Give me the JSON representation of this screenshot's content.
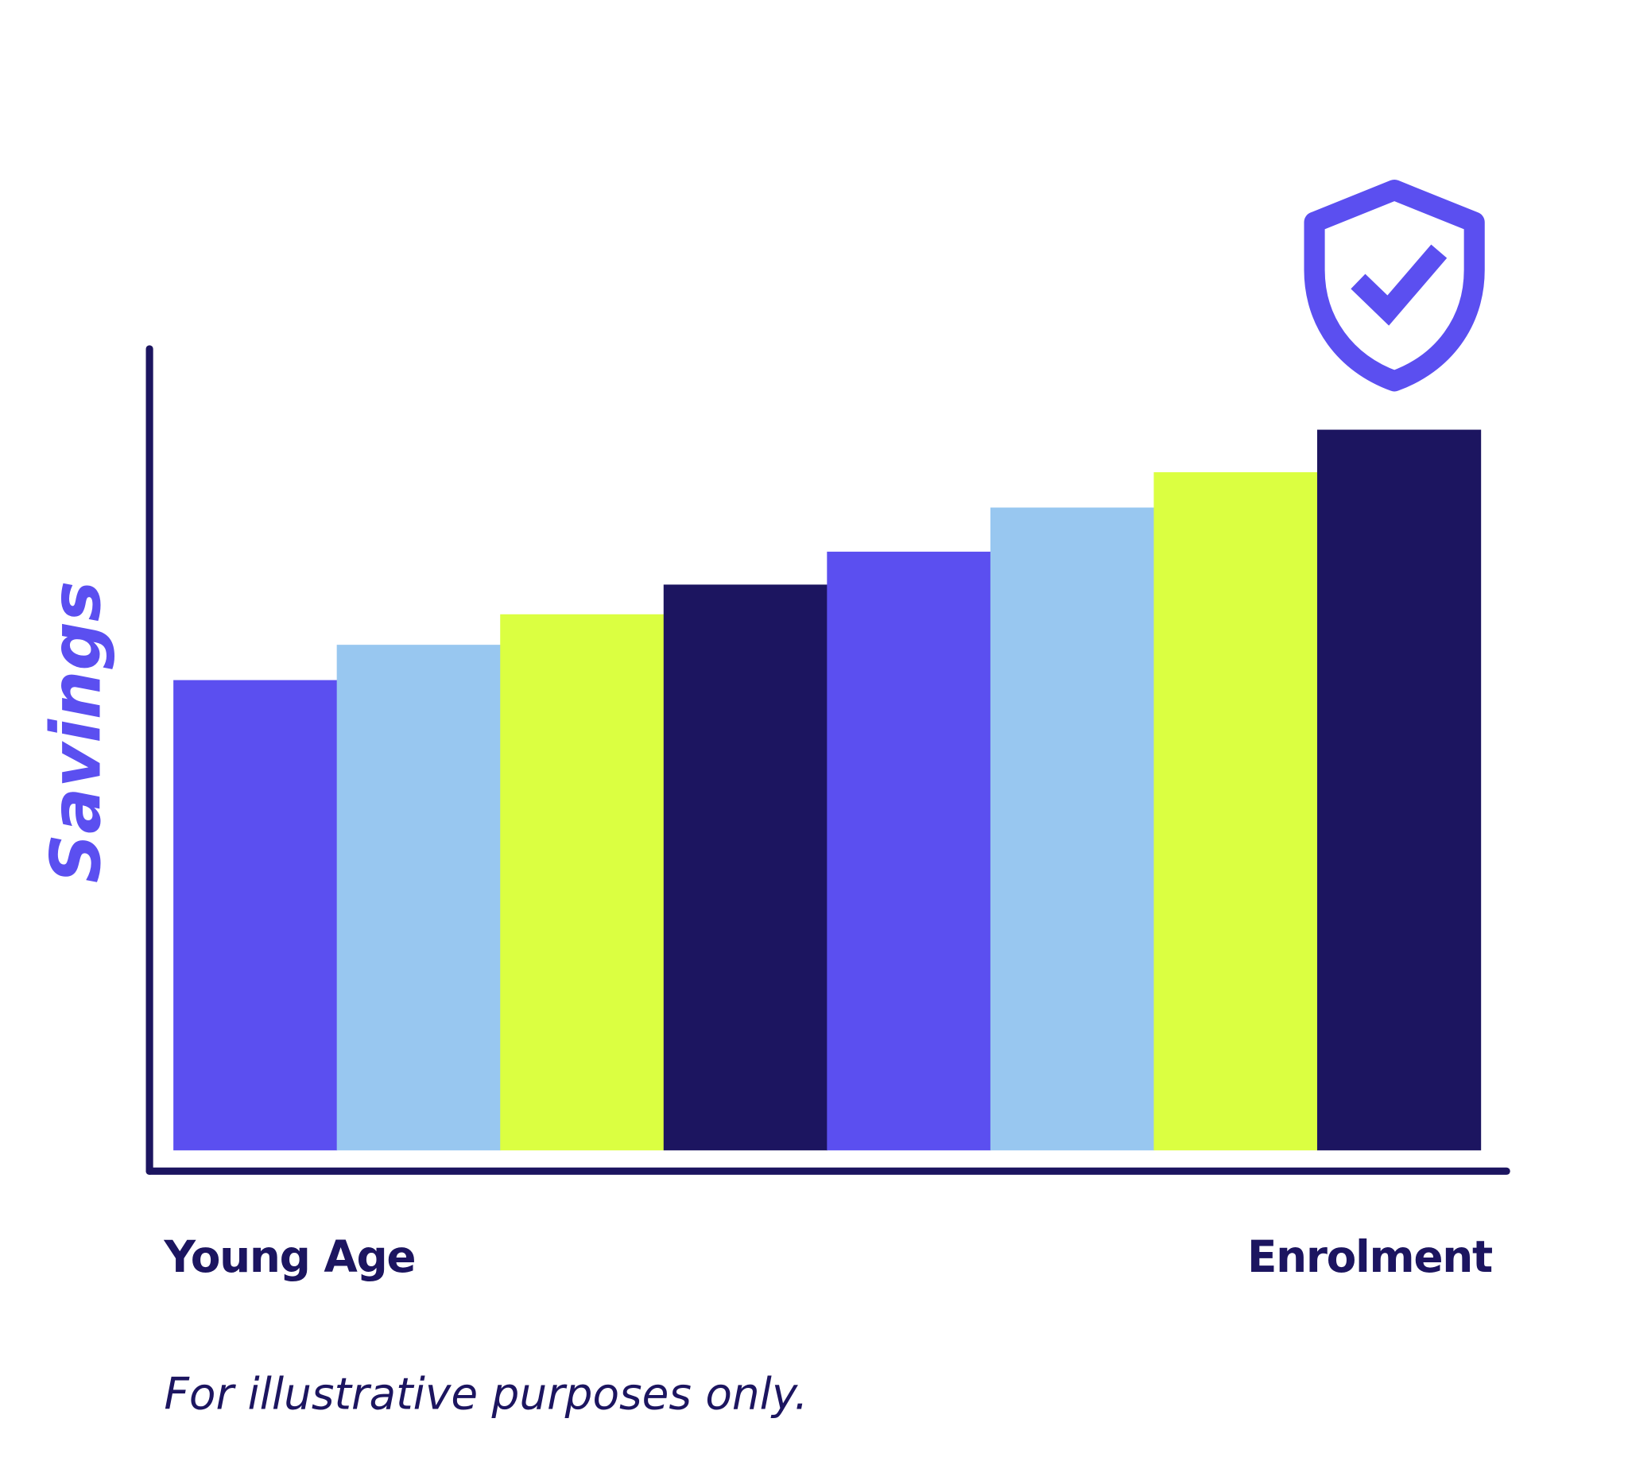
{
  "chart_data": {
    "type": "bar",
    "ylabel": "Savings",
    "xlabel_start": "Young Age",
    "xlabel_end": "Enrolment",
    "footnote": "For illustrative purposes only.",
    "values": [
      58.6,
      63.0,
      66.8,
      70.5,
      74.6,
      80.1,
      84.5,
      89.8
    ],
    "ylim": [
      0,
      100
    ],
    "grid": false,
    "ticks": false,
    "bar_colors": [
      "#5b4ff0",
      "#98c7f0",
      "#dbff41",
      "#1c1560",
      "#5b4ff0",
      "#98c7f0",
      "#dbff41",
      "#1c1560"
    ],
    "axis_color": "#1c1560",
    "icon": "shield-check-icon",
    "icon_color": "#5b4ff0"
  }
}
